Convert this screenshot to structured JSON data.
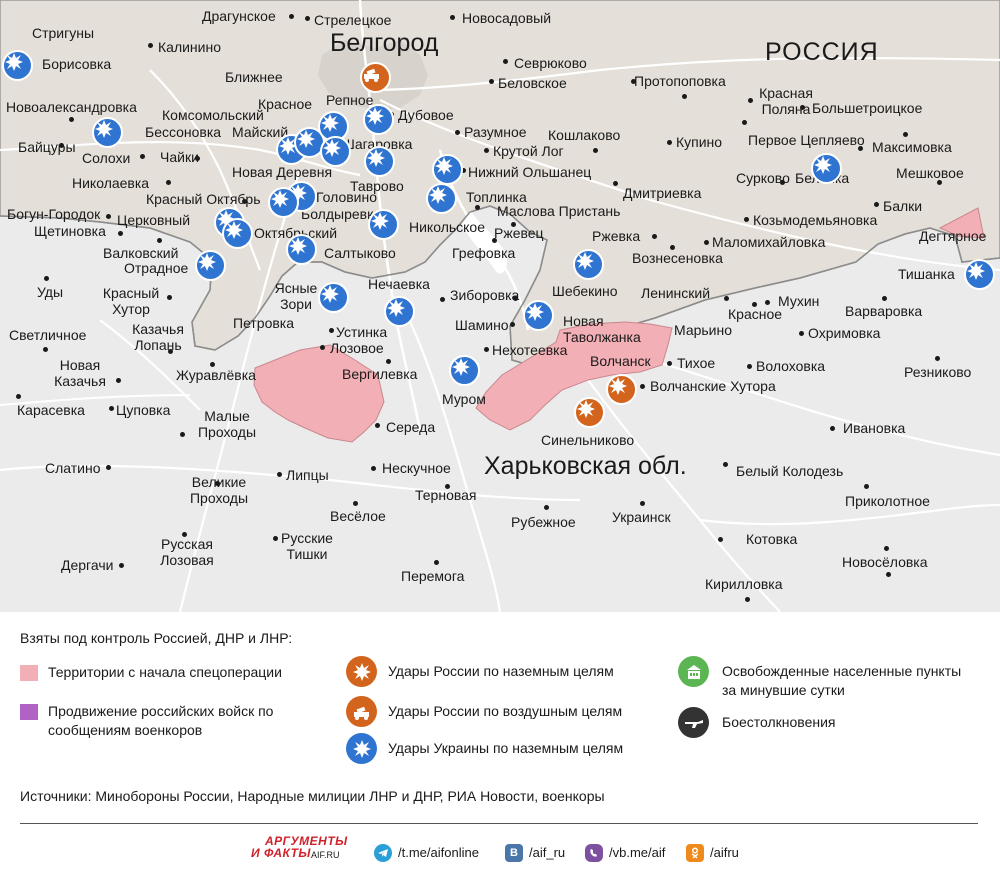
{
  "map": {
    "region_labels": {
      "belgorod": "Белгород",
      "russia": "РОССИЯ",
      "kharkov_oblast": "Харьковская обл."
    },
    "places": [
      "Драгунское",
      "Стрелецкое",
      "Новосадовый",
      "Стригуны",
      "Борисовка",
      "Калинино",
      "Севрюково",
      "Беловское",
      "Протопоповка",
      "Красная Поляна",
      "Ближнее",
      "Репное",
      "Большетроицкое",
      "Новоалександровка",
      "Красное",
      "Дубовое",
      "Комсомольский",
      "Бессоновка",
      "Майский",
      "Разумное",
      "Кошлаково",
      "Первое Цепляево",
      "Байцуры",
      "Солохи",
      "Чайки",
      "Шагаровка",
      "Крутой Лог",
      "Купино",
      "Максимовка",
      "Новая Деревня",
      "Нижний Ольшанец",
      "Николаевка",
      "Таврово",
      "Сурково",
      "Белянка",
      "Мешковое",
      "Красный Октябрь",
      "Головино",
      "Топлинка",
      "Дмитриевка",
      "Богун-Городок",
      "Болдыревка",
      "Маслова Пристань",
      "Балки",
      "Церковный",
      "Козьмодемьяновка",
      "Щетиновка",
      "Октябрьский",
      "Никольское",
      "Ржевец",
      "Ржевка",
      "Маломихайловка",
      "Дегтярное",
      "Валковский",
      "Салтыково",
      "Грефовка",
      "Отрадное",
      "Вознесеновка",
      "Тишанка",
      "Уды",
      "Нечаевка",
      "Шебекино",
      "Ленинский",
      "Красный Хутор",
      "Ясные Зори",
      "Зиборовка",
      "Мухин",
      "Варваровка",
      "Петровка",
      "Шамино",
      "Новая Таволжанка",
      "Красное",
      "Светличное",
      "Устинка",
      "Марьино",
      "Охримовка",
      "Казачья Лопань",
      "Лозовое",
      "Нехотеевка",
      "Новая Казачья",
      "Журавлёвка",
      "Вергилевка",
      "Волчанск",
      "Тихое",
      "Волоховка",
      "Резниково",
      "Волчанские Хутора",
      "Муром",
      "Карасевка",
      "Цуповка",
      "Малые Проходы",
      "Середа",
      "Синельниково",
      "Ивановка",
      "Слатино",
      "Липцы",
      "Нескучное",
      "Белый Колодезь",
      "Великие Проходы",
      "Терновая",
      "Приколотное",
      "Весёлое",
      "Рубежное",
      "Украинск",
      "Русская Лозовая",
      "Русские Тишки",
      "Котовка",
      "Новосёловка",
      "Дергачи",
      "Перемога",
      "Кирилловка"
    ]
  },
  "legend": {
    "heading": "Взяты под контроль Россией, ДНР и ЛНР:",
    "items": [
      {
        "label": "Территории с начала спецоперации",
        "color": "#f2b0b6"
      },
      {
        "label": "Продвижение российских войск по сообщениям военкоров",
        "color": "#b063c5"
      },
      {
        "label": "Удары России по наземным целям",
        "color": "#d3641d",
        "icon": "explosion-icon"
      },
      {
        "label": "Удары России по воздушным целям",
        "color": "#d3641d",
        "icon": "air-defense-vehicle-icon"
      },
      {
        "label": "Удары Украины по наземным целям",
        "color": "#2f74d0",
        "icon": "explosion-icon"
      },
      {
        "label": "Освобожденные населенные пункты за минувшие сутки",
        "color": "#5bb552",
        "icon": "building-icon"
      },
      {
        "label": "Боестолкновения",
        "color": "#333333",
        "icon": "rifle-icon"
      }
    ],
    "sources": "Источники: Минобороны России, Народные милиции ЛНР и ДНР, РИА Новости, военкоры"
  },
  "footer": {
    "logo_line1": "АРГУМЕНТЫ",
    "logo_line2": "И ФАКТЫ",
    "logo_site": "AIF.RU",
    "links": [
      {
        "icon": "telegram-icon",
        "text": "/t.me/aifonline",
        "color": "#2a9fd8"
      },
      {
        "icon": "vk-icon",
        "text": "/aif_ru",
        "color": "#4a76a8"
      },
      {
        "icon": "viber-icon",
        "text": "/vb.me/aif",
        "color": "#7d51a0"
      },
      {
        "icon": "odnoklassniki-icon",
        "text": "/aifru",
        "color": "#f08a1c"
      }
    ]
  }
}
